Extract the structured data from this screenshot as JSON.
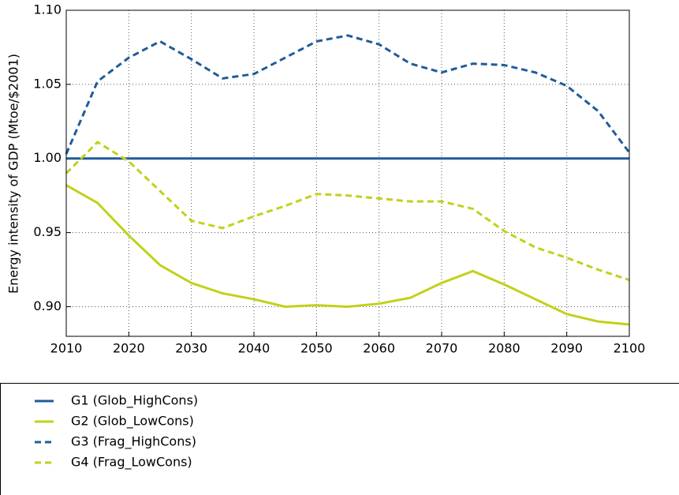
{
  "chart_data": {
    "type": "line",
    "y_label": "Energy intensity of GDP (Mtoe/$2001)",
    "x": [
      2010,
      2015,
      2020,
      2025,
      2030,
      2035,
      2040,
      2045,
      2050,
      2055,
      2060,
      2065,
      2070,
      2075,
      2080,
      2085,
      2090,
      2095,
      2100
    ],
    "series": [
      {
        "name": "G1 (Glob_HighCons)",
        "color": "#1f5c99",
        "style": "solid",
        "values": [
          1.0,
          1.0,
          1.0,
          1.0,
          1.0,
          1.0,
          1.0,
          1.0,
          1.0,
          1.0,
          1.0,
          1.0,
          1.0,
          1.0,
          1.0,
          1.0,
          1.0,
          1.0,
          1.0
        ]
      },
      {
        "name": "G2 (Glob_LowCons)",
        "color": "#c2d11a",
        "style": "solid",
        "values": [
          0.982,
          0.97,
          0.948,
          0.928,
          0.916,
          0.909,
          0.905,
          0.9,
          0.901,
          0.9,
          0.902,
          0.906,
          0.916,
          0.924,
          0.915,
          0.905,
          0.895,
          0.89,
          0.888
        ]
      },
      {
        "name": "G3 (Frag_HighCons)",
        "color": "#1f5c99",
        "style": "dashed",
        "values": [
          1.003,
          1.052,
          1.068,
          1.079,
          1.067,
          1.054,
          1.057,
          1.068,
          1.079,
          1.083,
          1.077,
          1.064,
          1.058,
          1.064,
          1.063,
          1.058,
          1.049,
          1.032,
          1.004
        ]
      },
      {
        "name": "G4 (Frag_LowCons)",
        "color": "#c2d11a",
        "style": "dashed",
        "values": [
          0.99,
          1.011,
          0.998,
          0.978,
          0.958,
          0.953,
          0.961,
          0.968,
          0.976,
          0.975,
          0.973,
          0.971,
          0.971,
          0.966,
          0.951,
          0.94,
          0.933,
          0.925,
          0.918
        ]
      }
    ],
    "xlim": [
      2010,
      2100
    ],
    "xticks": [
      2010,
      2020,
      2030,
      2040,
      2050,
      2060,
      2070,
      2080,
      2090,
      2100
    ],
    "ylim": [
      0.88,
      1.1
    ],
    "yticks": [
      {
        "value": 0.9,
        "label": "0.90"
      },
      0.95,
      {
        "value": 1.0,
        "label": "1.00"
      },
      1.05,
      {
        "value": 1.1,
        "label": "1.10"
      }
    ],
    "grid": true,
    "legend": "below"
  }
}
